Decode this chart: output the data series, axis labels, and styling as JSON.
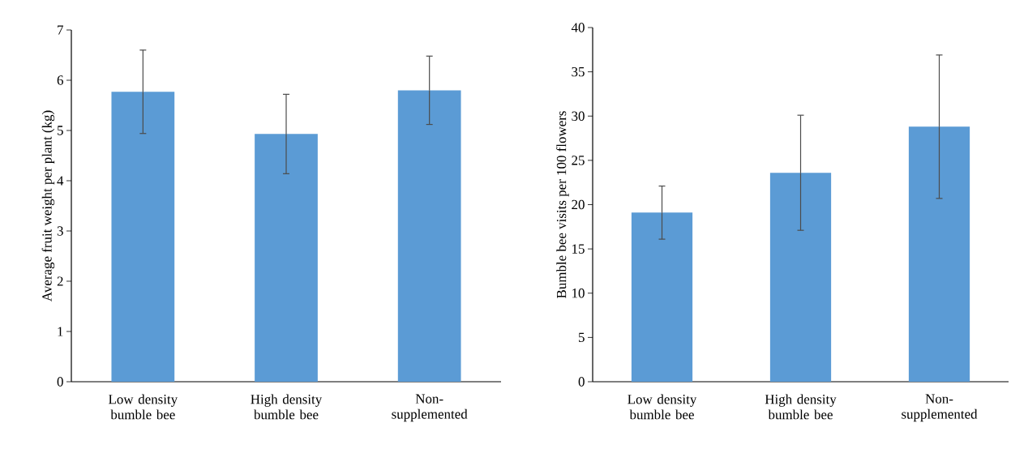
{
  "chart_data": [
    {
      "type": "bar",
      "ylabel": "Average fruit weight per plant (kg)",
      "categories": [
        "Low density bumble bee",
        "High density bumble bee",
        "Non-supplemented"
      ],
      "values": [
        5.77,
        4.93,
        5.8
      ],
      "errors": [
        0.83,
        0.79,
        0.68
      ],
      "color": "#5b9bd5",
      "ylim": [
        0,
        7
      ],
      "yticks": [
        0,
        1,
        2,
        3,
        4,
        5,
        6,
        7
      ],
      "grid": false
    },
    {
      "type": "bar",
      "ylabel": "Bumble bee visits per 100 flowers",
      "categories": [
        "Low density bumble bee",
        "High density bumble bee",
        "Non-supplemented"
      ],
      "values": [
        19.1,
        23.6,
        28.8
      ],
      "errors": [
        3.0,
        6.5,
        8.1
      ],
      "color": "#5b9bd5",
      "ylim": [
        0,
        40
      ],
      "yticks": [
        0,
        5,
        10,
        15,
        20,
        25,
        30,
        35,
        40
      ],
      "grid": false
    }
  ]
}
